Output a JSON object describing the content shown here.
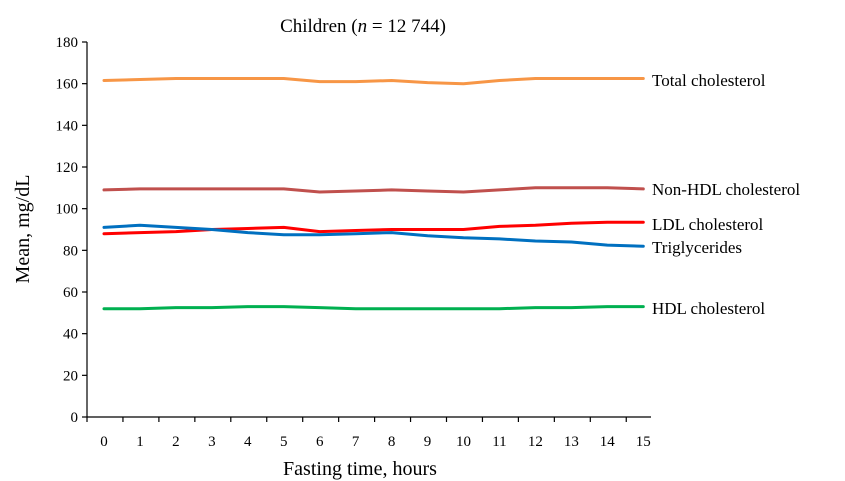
{
  "chart_data": {
    "type": "line",
    "title": "Children (n = 12 744)",
    "title_prefix": "Children (",
    "title_n": "n",
    "title_suffix": " = 12 744)",
    "xlabel": "Fasting time, hours",
    "ylabel": "Mean, mg/dL",
    "x": [
      0,
      1,
      2,
      3,
      4,
      5,
      6,
      7,
      8,
      9,
      10,
      11,
      12,
      13,
      14,
      15
    ],
    "x_tick_labels": [
      "0",
      "1",
      "2",
      "3",
      "4",
      "5",
      "6",
      "7",
      "8",
      "9",
      "10",
      "11",
      "12",
      "13",
      "14",
      "15"
    ],
    "ylim": [
      0,
      180
    ],
    "y_ticks": [
      0,
      20,
      40,
      60,
      80,
      100,
      120,
      140,
      160,
      180
    ],
    "y_tick_labels": [
      "0",
      "20",
      "40",
      "60",
      "80",
      "100",
      "120",
      "140",
      "160",
      "180"
    ],
    "grid": false,
    "legend": "labels at right end of each line",
    "series": [
      {
        "name": "Total cholesterol",
        "color": "#F79646",
        "values": [
          161.5,
          162,
          162.5,
          162.5,
          162.5,
          162.5,
          161,
          161,
          161.5,
          160.5,
          160,
          161.5,
          162.5,
          162.5,
          162.5,
          162.5
        ]
      },
      {
        "name": "Non-HDL cholesterol",
        "color": "#C0504D",
        "values": [
          109,
          109.5,
          109.5,
          109.5,
          109.5,
          109.5,
          108,
          108.5,
          109,
          108.5,
          108,
          109,
          110,
          110,
          110,
          109.5
        ]
      },
      {
        "name": "LDL cholesterol",
        "color": "#FF0000",
        "values": [
          88,
          88.5,
          89,
          90,
          90.5,
          91,
          89,
          89.5,
          90,
          90,
          90,
          91.5,
          92,
          93,
          93.5,
          93.5
        ]
      },
      {
        "name": "Triglycerides",
        "color": "#0070C0",
        "values": [
          91,
          92,
          91,
          90,
          88.5,
          87.5,
          87.5,
          88,
          88.5,
          87,
          86,
          85.5,
          84.5,
          84,
          82.5,
          82
        ]
      },
      {
        "name": "HDL cholesterol",
        "color": "#00B050",
        "values": [
          52,
          52,
          52.5,
          52.5,
          53,
          53,
          52.5,
          52,
          52,
          52,
          52,
          52,
          52.5,
          52.5,
          53,
          53
        ]
      }
    ]
  }
}
